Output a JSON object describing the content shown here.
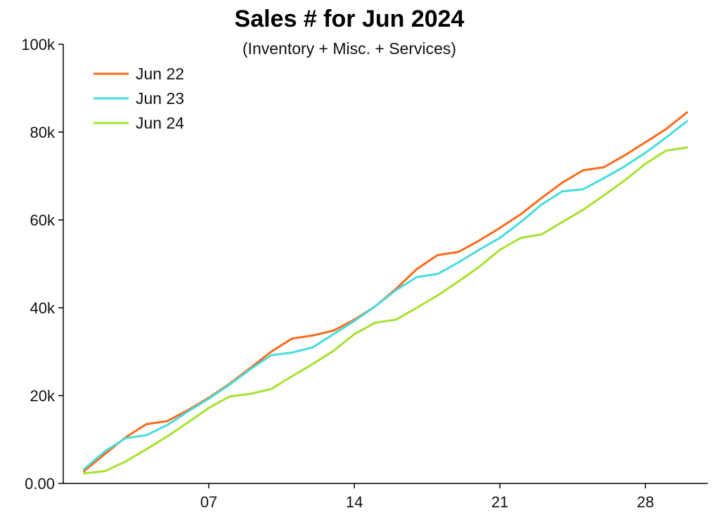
{
  "chart_data": {
    "type": "line",
    "title": "Sales # for Jun 2024",
    "subtitle": "(Inventory + Misc. + Services)",
    "xlabel": "",
    "ylabel": "",
    "x": [
      1,
      2,
      3,
      4,
      5,
      6,
      7,
      8,
      9,
      10,
      11,
      12,
      13,
      14,
      15,
      16,
      17,
      18,
      19,
      20,
      21,
      22,
      23,
      24,
      25,
      26,
      27,
      28,
      29,
      30
    ],
    "xlim": [
      0,
      31
    ],
    "ylim": [
      0,
      100000
    ],
    "x_ticks": [
      {
        "value": 7,
        "label": "07"
      },
      {
        "value": 14,
        "label": "14"
      },
      {
        "value": 21,
        "label": "21"
      },
      {
        "value": 28,
        "label": "28"
      }
    ],
    "y_ticks": [
      {
        "value": 0,
        "label": "0.00"
      },
      {
        "value": 20000,
        "label": "20k"
      },
      {
        "value": 40000,
        "label": "40k"
      },
      {
        "value": 60000,
        "label": "60k"
      },
      {
        "value": 80000,
        "label": "80k"
      },
      {
        "value": 100000,
        "label": "100k"
      }
    ],
    "grid": false,
    "legend_position": "top-left",
    "series": [
      {
        "name": "Jun 22",
        "color": "#ff6a1a",
        "values": [
          2800,
          6700,
          10500,
          13500,
          14200,
          16700,
          19500,
          22700,
          26300,
          30000,
          33000,
          33700,
          34800,
          37300,
          40300,
          44300,
          48800,
          52000,
          52700,
          55300,
          58200,
          61300,
          65000,
          68500,
          71300,
          72000,
          74700,
          77700,
          80700,
          84500
        ]
      },
      {
        "name": "Jun 23",
        "color": "#45dcdc",
        "values": [
          3300,
          7300,
          10300,
          11000,
          13300,
          16400,
          19300,
          22500,
          26000,
          29200,
          29800,
          31000,
          34000,
          37000,
          40300,
          44000,
          47000,
          47700,
          50300,
          53200,
          55900,
          59500,
          63500,
          66500,
          67000,
          69500,
          72200,
          75300,
          78800,
          82500
        ]
      },
      {
        "name": "Jun 24",
        "color": "#a6e22e",
        "values": [
          2300,
          2800,
          5000,
          7800,
          10700,
          13900,
          17200,
          19800,
          20400,
          21500,
          24400,
          27200,
          30200,
          34000,
          36600,
          37300,
          40000,
          42800,
          46000,
          49300,
          53200,
          55900,
          56700,
          59500,
          62300,
          65600,
          69000,
          72800,
          75800,
          76500
        ]
      }
    ]
  }
}
